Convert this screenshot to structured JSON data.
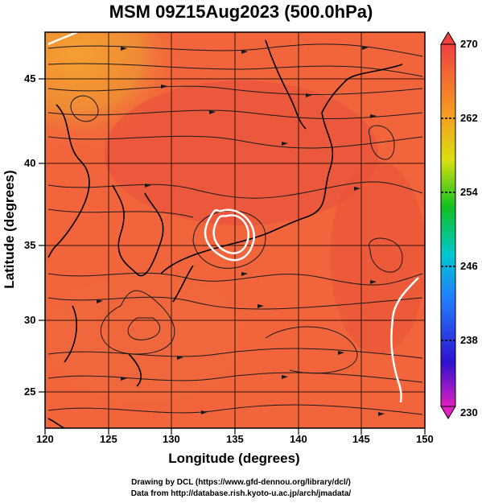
{
  "title": "MSM 09Z15Aug2023 (500.0hPa)",
  "xaxis": {
    "label": "Longitude (degrees)",
    "ticks": [
      "120",
      "125",
      "130",
      "135",
      "140",
      "145",
      "150"
    ]
  },
  "yaxis": {
    "label": "Latitude  (degrees)",
    "ticks": [
      "25",
      "30",
      "35",
      "40",
      "45"
    ]
  },
  "colorbar": {
    "ticks": [
      "270",
      "262",
      "254",
      "246",
      "238",
      "230"
    ],
    "min": 230,
    "max": 270
  },
  "credits": {
    "line1": "Drawing by DCL (https://www.gfd-dennou.org/library/dcl/)",
    "line2": "Data from http://database.rish.kyoto-u.ac.jp/arch/jmadata/"
  },
  "colors": {
    "field_high": "#e8603a",
    "field_warm": "#f26a3c",
    "field_orange": "#f39a3c",
    "contour": "#ffffff",
    "coast": "#000000",
    "streamline": "#1a1a1a"
  }
}
